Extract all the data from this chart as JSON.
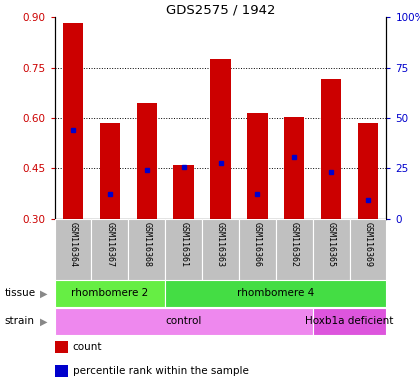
{
  "title": "GDS2575 / 1942",
  "samples": [
    "GSM116364",
    "GSM116367",
    "GSM116368",
    "GSM116361",
    "GSM116363",
    "GSM116366",
    "GSM116362",
    "GSM116365",
    "GSM116369"
  ],
  "red_bar_tops": [
    0.882,
    0.584,
    0.645,
    0.46,
    0.775,
    0.615,
    0.603,
    0.715,
    0.584
  ],
  "red_bar_bottoms": [
    0.3,
    0.3,
    0.3,
    0.3,
    0.3,
    0.3,
    0.3,
    0.3,
    0.3
  ],
  "blue_marker_vals": [
    0.565,
    0.375,
    0.445,
    0.454,
    0.465,
    0.375,
    0.485,
    0.44,
    0.355
  ],
  "ylim": [
    0.3,
    0.9
  ],
  "yticks_left": [
    0.3,
    0.45,
    0.6,
    0.75,
    0.9
  ],
  "yticks_right_labels": [
    "0",
    "25",
    "50",
    "75",
    "100%"
  ],
  "left_color": "#cc0000",
  "right_color": "#0000cc",
  "bar_color": "#cc0000",
  "blue_color": "#0000cc",
  "tissue_groups": [
    {
      "label": "rhombomere 2",
      "start": 0,
      "end": 3,
      "color": "#66ee44"
    },
    {
      "label": "rhombomere 4",
      "start": 3,
      "end": 9,
      "color": "#44dd44"
    }
  ],
  "strain_groups": [
    {
      "label": "control",
      "start": 0,
      "end": 7,
      "color": "#ee88ee"
    },
    {
      "label": "Hoxb1a deficient",
      "start": 7,
      "end": 9,
      "color": "#dd55dd"
    }
  ],
  "tissue_label": "tissue",
  "strain_label": "strain",
  "legend_count": "count",
  "legend_percentile": "percentile rank within the sample"
}
